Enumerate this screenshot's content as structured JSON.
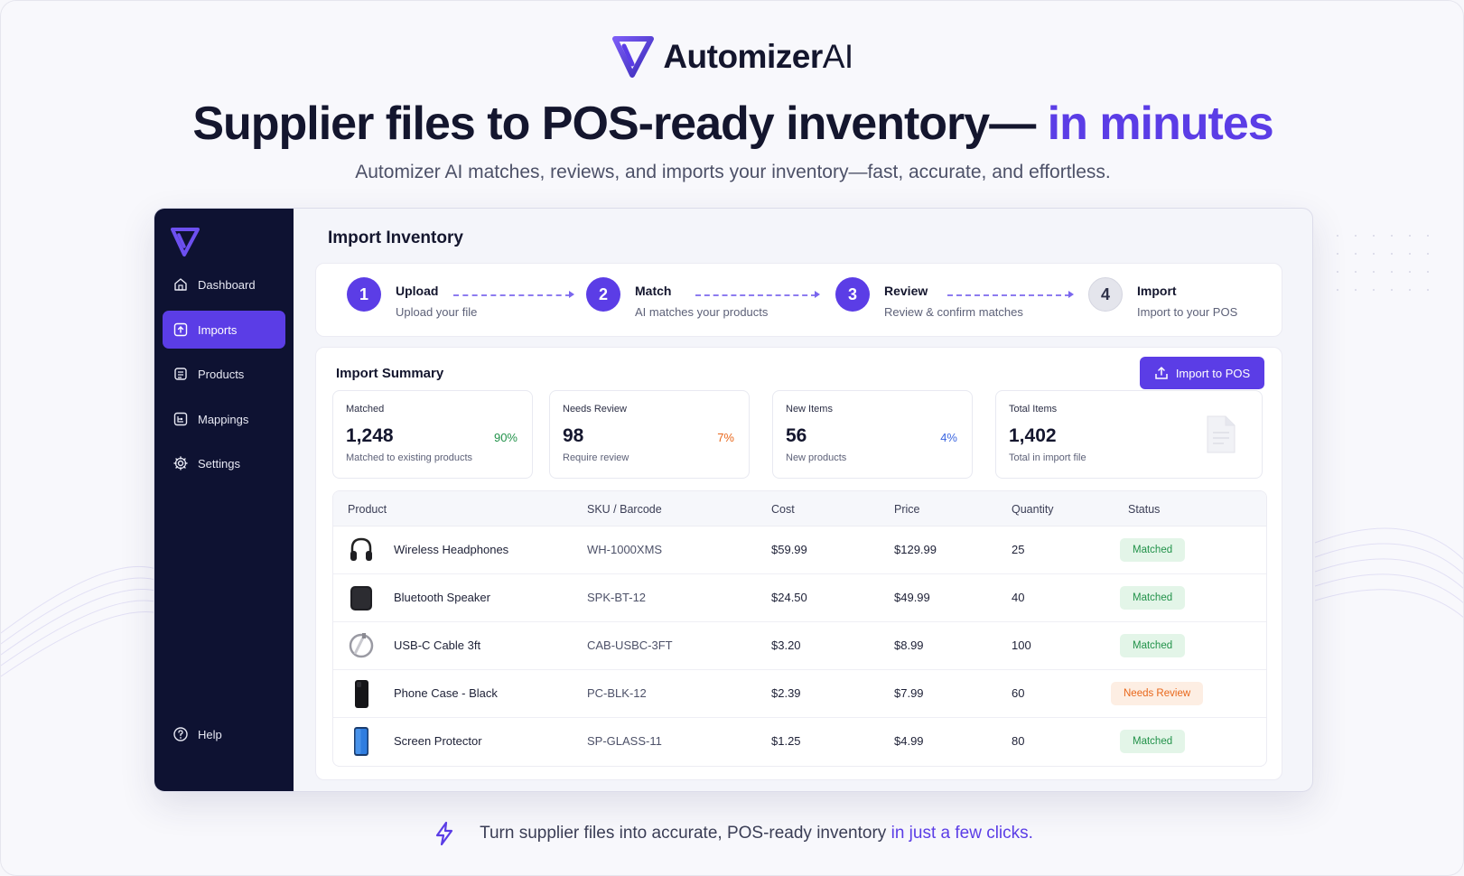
{
  "brand": {
    "name": "Automizer",
    "suffix": "AI"
  },
  "hero": {
    "headline": "Supplier files to POS-ready inventory—",
    "headline_accent": "in minutes",
    "subhead": "Automizer AI matches, reviews, and imports your inventory—fast, accurate, and effortless."
  },
  "sidebar": {
    "items": [
      {
        "label": "Dashboard",
        "icon": "home-icon"
      },
      {
        "label": "Imports",
        "icon": "upload-icon",
        "active": true
      },
      {
        "label": "Products",
        "icon": "box-icon"
      },
      {
        "label": "Mappings",
        "icon": "mapping-icon"
      },
      {
        "label": "Settings",
        "icon": "gear-icon"
      }
    ],
    "help": "Help"
  },
  "page": {
    "title": "Import Inventory"
  },
  "steps": [
    {
      "num": "1",
      "title": "Upload",
      "desc": "Upload your file"
    },
    {
      "num": "2",
      "title": "Match",
      "desc": "AI matches your products"
    },
    {
      "num": "3",
      "title": "Review",
      "desc": "Review & confirm matches"
    },
    {
      "num": "4",
      "title": "Import",
      "desc": "Import to your POS"
    }
  ],
  "summary": {
    "title": "Import Summary",
    "import_button": "Import to POS",
    "stats": [
      {
        "label": "Matched",
        "value": "1,248",
        "pct": "90%",
        "sub": "Matched to existing products",
        "color": "#22924a"
      },
      {
        "label": "Needs Review",
        "value": "98",
        "pct": "7%",
        "sub": "Require review",
        "color": "#e8671b"
      },
      {
        "label": "New Items",
        "value": "56",
        "pct": "4%",
        "sub": "New products",
        "color": "#3b66e0"
      },
      {
        "label": "Total Items",
        "value": "1,402",
        "pct": "",
        "sub": "Total in import file",
        "color": "#14162e"
      }
    ]
  },
  "table": {
    "columns": [
      "Product",
      "SKU / Barcode",
      "Cost",
      "Price",
      "Quantity",
      "Status"
    ],
    "rows": [
      {
        "product": "Wireless Headphones",
        "sku": "WH-1000XMS",
        "cost": "$59.99",
        "price": "$129.99",
        "qty": "25",
        "status": "Matched",
        "thumb": "headphones-icon"
      },
      {
        "product": "Bluetooth Speaker",
        "sku": "SPK-BT-12",
        "cost": "$24.50",
        "price": "$49.99",
        "qty": "40",
        "status": "Matched",
        "thumb": "speaker-icon"
      },
      {
        "product": "USB-C Cable 3ft",
        "sku": "CAB-USBC-3FT",
        "cost": "$3.20",
        "price": "$8.99",
        "qty": "100",
        "status": "Matched",
        "thumb": "cable-icon"
      },
      {
        "product": "Phone Case - Black",
        "sku": "PC-BLK-12",
        "cost": "$2.39",
        "price": "$7.99",
        "qty": "60",
        "status": "Needs Review",
        "thumb": "phone-case-icon"
      },
      {
        "product": "Screen Protector",
        "sku": "SP-GLASS-11",
        "cost": "$1.25",
        "price": "$4.99",
        "qty": "80",
        "status": "Matched",
        "thumb": "screen-protector-icon"
      }
    ]
  },
  "footer": {
    "text": "Turn supplier files into accurate, POS-ready inventory",
    "accent": "in just a few clicks."
  },
  "colors": {
    "accent": "#5b3de6",
    "sidebar": "#0e1232",
    "matched": "#22924a",
    "review": "#e8671b"
  }
}
